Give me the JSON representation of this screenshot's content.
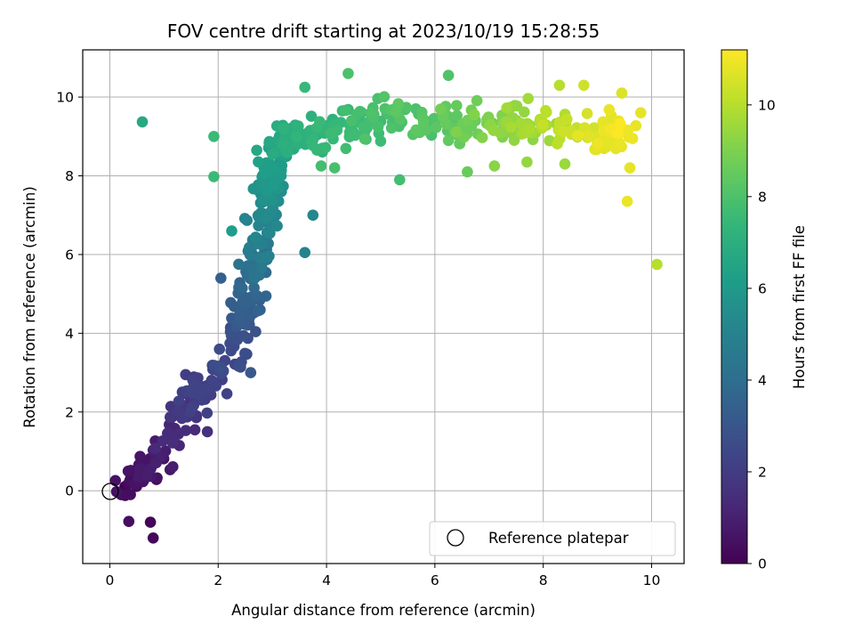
{
  "chart_data": {
    "type": "scatter",
    "title": "FOV centre drift starting at 2023/10/19 15:28:55",
    "xlabel": "Angular distance from reference (arcmin)",
    "ylabel": "Rotation from reference (arcmin)",
    "xlim": [
      -0.5,
      10.6
    ],
    "ylim": [
      -1.85,
      11.2
    ],
    "xticks": [
      0,
      2,
      4,
      6,
      8,
      10
    ],
    "yticks": [
      0,
      2,
      4,
      6,
      8,
      10
    ],
    "grid": true,
    "colorbar": {
      "label": "Hours from first FF file",
      "colormap": "viridis",
      "range": [
        0,
        11.2
      ],
      "ticks": [
        0,
        2,
        4,
        6,
        8,
        10
      ]
    },
    "legend": {
      "placement": "lower-right",
      "entries": [
        {
          "label": "Reference platepar",
          "marker": "open-circle"
        }
      ]
    },
    "reference_point": {
      "x": 0,
      "y": 0
    },
    "seed_points": [
      {
        "x": 0.55,
        "y": 0.3,
        "c": 0.2
      },
      {
        "x": 0.75,
        "y": -0.8,
        "c": 0.15
      },
      {
        "x": 0.8,
        "y": -1.2,
        "c": 0.2
      },
      {
        "x": 0.35,
        "y": -0.78,
        "c": 0.4
      },
      {
        "x": 0.6,
        "y": 9.37,
        "c": 6.7
      },
      {
        "x": 1.92,
        "y": 9.0,
        "c": 7.6
      },
      {
        "x": 1.92,
        "y": 7.98,
        "c": 7.6
      },
      {
        "x": 2.25,
        "y": 6.6,
        "c": 6.2
      },
      {
        "x": 2.05,
        "y": 5.4,
        "c": 3.4
      },
      {
        "x": 1.8,
        "y": 1.5,
        "c": 1.6
      },
      {
        "x": 1.4,
        "y": 2.95,
        "c": 2.0
      },
      {
        "x": 2.6,
        "y": 3.0,
        "c": 3.1
      },
      {
        "x": 3.75,
        "y": 7.0,
        "c": 5.2
      },
      {
        "x": 3.6,
        "y": 6.05,
        "c": 5.0
      },
      {
        "x": 3.6,
        "y": 10.25,
        "c": 7.5
      },
      {
        "x": 3.9,
        "y": 8.25,
        "c": 7.8
      },
      {
        "x": 4.15,
        "y": 8.2,
        "c": 7.9
      },
      {
        "x": 4.4,
        "y": 10.6,
        "c": 8.0
      },
      {
        "x": 5.35,
        "y": 7.9,
        "c": 7.8
      },
      {
        "x": 6.25,
        "y": 10.55,
        "c": 8.1
      },
      {
        "x": 6.6,
        "y": 8.1,
        "c": 8.6
      },
      {
        "x": 7.1,
        "y": 8.25,
        "c": 9.2
      },
      {
        "x": 7.7,
        "y": 8.35,
        "c": 9.4
      },
      {
        "x": 8.4,
        "y": 8.3,
        "c": 9.5
      },
      {
        "x": 8.3,
        "y": 10.3,
        "c": 10.0
      },
      {
        "x": 8.75,
        "y": 10.3,
        "c": 10.4
      },
      {
        "x": 9.55,
        "y": 7.35,
        "c": 10.9
      },
      {
        "x": 9.6,
        "y": 8.2,
        "c": 10.8
      },
      {
        "x": 9.8,
        "y": 9.6,
        "c": 10.8
      },
      {
        "x": 10.1,
        "y": 5.75,
        "c": 10.0
      },
      {
        "x": 9.45,
        "y": 10.1,
        "c": 10.6
      }
    ],
    "trend_path": [
      [
        0.3,
        0.0,
        0.3,
        0.2
      ],
      [
        0.9,
        0.9,
        0.8,
        0.35
      ],
      [
        1.5,
        2.2,
        2.0,
        0.35
      ],
      [
        2.3,
        3.5,
        2.5,
        0.3
      ],
      [
        2.6,
        5.0,
        3.6,
        0.3
      ],
      [
        2.8,
        6.4,
        4.8,
        0.3
      ],
      [
        2.9,
        7.8,
        5.8,
        0.3
      ],
      [
        3.2,
        8.9,
        6.8,
        0.35
      ],
      [
        4.0,
        9.2,
        7.4,
        0.4
      ],
      [
        5.0,
        9.5,
        7.9,
        0.45
      ],
      [
        6.0,
        9.3,
        8.3,
        0.45
      ],
      [
        7.0,
        9.3,
        9.0,
        0.45
      ],
      [
        8.0,
        9.3,
        9.8,
        0.45
      ],
      [
        9.0,
        9.2,
        10.6,
        0.45
      ],
      [
        9.5,
        9.0,
        11.0,
        0.35
      ]
    ],
    "point_count": 620,
    "rng_seed": 20231019
  }
}
